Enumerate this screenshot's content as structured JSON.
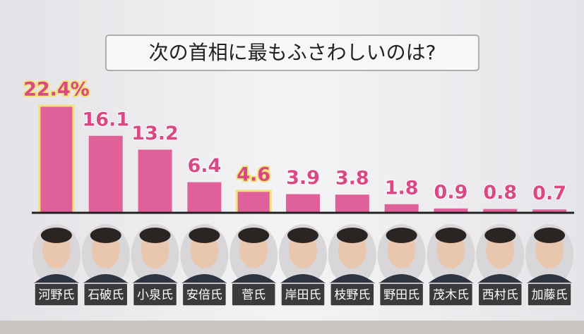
{
  "chart_data": {
    "type": "bar",
    "title": "次の首相に最もふさわしいのは?",
    "categories": [
      "河野氏",
      "石破氏",
      "小泉氏",
      "安倍氏",
      "菅氏",
      "岸田氏",
      "枝野氏",
      "野田氏",
      "茂木氏",
      "西村氏",
      "加藤氏"
    ],
    "values": [
      22.4,
      16.1,
      13.2,
      6.4,
      4.6,
      3.9,
      3.8,
      1.8,
      0.9,
      0.8,
      0.7
    ],
    "value_labels": [
      "22.4%",
      "16.1",
      "13.2",
      "6.4",
      "4.6",
      "3.9",
      "3.8",
      "1.8",
      "0.9",
      "0.8",
      "0.7"
    ],
    "color": "#e0609a",
    "label_color": "#d84a86",
    "highlighted": [
      0,
      4
    ],
    "highlight_color": "#f3e27a"
  }
}
